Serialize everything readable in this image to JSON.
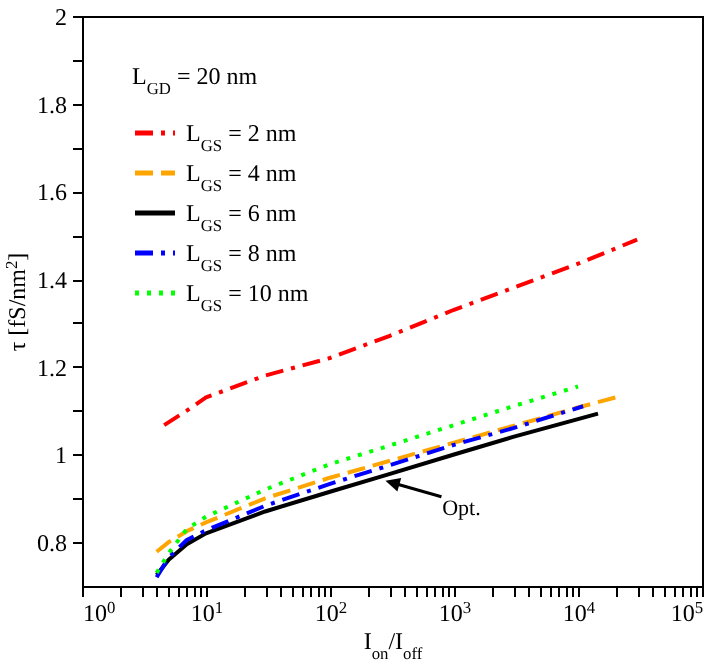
{
  "chart_data": {
    "type": "line",
    "xlabel": "I$_{on}$/I$_{off}$",
    "ylabel": "τ [fS/nm$^{2}$]",
    "legend_title": "L$_{GD}$ = 20 nm",
    "legend": "top left",
    "log": "x",
    "grid": false,
    "xlim": [
      1,
      100000
    ],
    "xticks": [
      {
        "value": 1,
        "label": "10$^{0}$"
      },
      {
        "value": 2,
        "label": null
      },
      {
        "value": 3,
        "label": null
      },
      {
        "value": 4,
        "label": null
      },
      {
        "value": 5,
        "label": null
      },
      {
        "value": 6,
        "label": null
      },
      {
        "value": 7,
        "label": null
      },
      {
        "value": 8,
        "label": null
      },
      {
        "value": 9,
        "label": null
      },
      {
        "value": 10,
        "label": "10$^{1}$"
      },
      {
        "value": 20,
        "label": null
      },
      {
        "value": 30,
        "label": null
      },
      {
        "value": 40,
        "label": null
      },
      {
        "value": 50,
        "label": null
      },
      {
        "value": 60,
        "label": null
      },
      {
        "value": 70,
        "label": null
      },
      {
        "value": 80,
        "label": null
      },
      {
        "value": 90,
        "label": null
      },
      {
        "value": 100,
        "label": "10$^{2}$"
      },
      {
        "value": 200,
        "label": null
      },
      {
        "value": 300,
        "label": null
      },
      {
        "value": 400,
        "label": null
      },
      {
        "value": 500,
        "label": null
      },
      {
        "value": 600,
        "label": null
      },
      {
        "value": 700,
        "label": null
      },
      {
        "value": 800,
        "label": null
      },
      {
        "value": 900,
        "label": null
      },
      {
        "value": 1000,
        "label": "10$^{3}$"
      },
      {
        "value": 2000,
        "label": null
      },
      {
        "value": 3000,
        "label": null
      },
      {
        "value": 4000,
        "label": null
      },
      {
        "value": 5000,
        "label": null
      },
      {
        "value": 6000,
        "label": null
      },
      {
        "value": 7000,
        "label": null
      },
      {
        "value": 8000,
        "label": null
      },
      {
        "value": 9000,
        "label": null
      },
      {
        "value": 10000,
        "label": "10$^{4}$"
      },
      {
        "value": 20000,
        "label": null
      },
      {
        "value": 30000,
        "label": null
      },
      {
        "value": 40000,
        "label": null
      },
      {
        "value": 50000,
        "label": null
      },
      {
        "value": 60000,
        "label": null
      },
      {
        "value": 70000,
        "label": null
      },
      {
        "value": 80000,
        "label": null
      },
      {
        "value": 90000,
        "label": null
      },
      {
        "value": 100000,
        "label": "10$^{5}$"
      }
    ],
    "ylim": [
      0.7,
      2
    ],
    "yticks": [
      {
        "value": 0.8,
        "label": "0.8"
      },
      {
        "value": 0.9,
        "label": null
      },
      {
        "value": 1,
        "label": "1"
      },
      {
        "value": 1.1,
        "label": null
      },
      {
        "value": 1.2,
        "label": "1.2"
      },
      {
        "value": 1.3,
        "label": null
      },
      {
        "value": 1.4,
        "label": "1.4"
      },
      {
        "value": 1.5,
        "label": null
      },
      {
        "value": 1.6,
        "label": "1.6"
      },
      {
        "value": 1.7,
        "label": null
      },
      {
        "value": 1.8,
        "label": "1.8"
      },
      {
        "value": 1.9,
        "label": null
      },
      {
        "value": 2,
        "label": "2"
      }
    ],
    "series": [
      {
        "name": "L$_{GS}$ =  2 nm",
        "color": "#ff0000",
        "line_style": "dashdot",
        "x": [
          4.6,
          7,
          10,
          30,
          100,
          300,
          1000,
          3000,
          10000,
          30000
        ],
        "values": [
          1.067,
          1.1,
          1.13,
          1.18,
          1.22,
          1.27,
          1.33,
          1.38,
          1.435,
          1.49
        ]
      },
      {
        "name": "L$_{GS}$ =  4 nm",
        "color": "#ffa500",
        "line_style": "dashed",
        "x": [
          4,
          5,
          7,
          10,
          30,
          100,
          300,
          1000,
          3000,
          10000,
          22000
        ],
        "values": [
          0.778,
          0.8,
          0.825,
          0.845,
          0.9,
          0.947,
          0.985,
          1.027,
          1.065,
          1.107,
          1.133
        ]
      },
      {
        "name": "L$_{GS}$ =  6 nm",
        "color": "#000000",
        "line_style": "solid",
        "x": [
          4,
          5,
          7,
          10,
          30,
          100,
          300,
          1000,
          3000,
          14500
        ],
        "values": [
          0.725,
          0.76,
          0.795,
          0.82,
          0.87,
          0.915,
          0.955,
          1.0,
          1.04,
          1.093
        ]
      },
      {
        "name": "L$_{GS}$ =  8 nm",
        "color": "#0000ff",
        "line_style": "dashdot",
        "x": [
          4,
          5,
          7,
          10,
          30,
          100,
          300,
          1000,
          3000,
          11000
        ],
        "values": [
          0.72,
          0.765,
          0.805,
          0.827,
          0.883,
          0.933,
          0.975,
          1.022,
          1.06,
          1.11
        ]
      },
      {
        "name": "L$_{GS}$ = 10 nm",
        "color": "#00ff00",
        "line_style": "dotted",
        "x": [
          4,
          5,
          7,
          10,
          30,
          100,
          300,
          1000,
          3000,
          10000
        ],
        "values": [
          0.73,
          0.775,
          0.83,
          0.858,
          0.92,
          0.978,
          1.02,
          1.067,
          1.11,
          1.155
        ]
      }
    ],
    "annotations": [
      {
        "text": "Opt.",
        "x": 280,
        "y": 0.94
      }
    ]
  }
}
